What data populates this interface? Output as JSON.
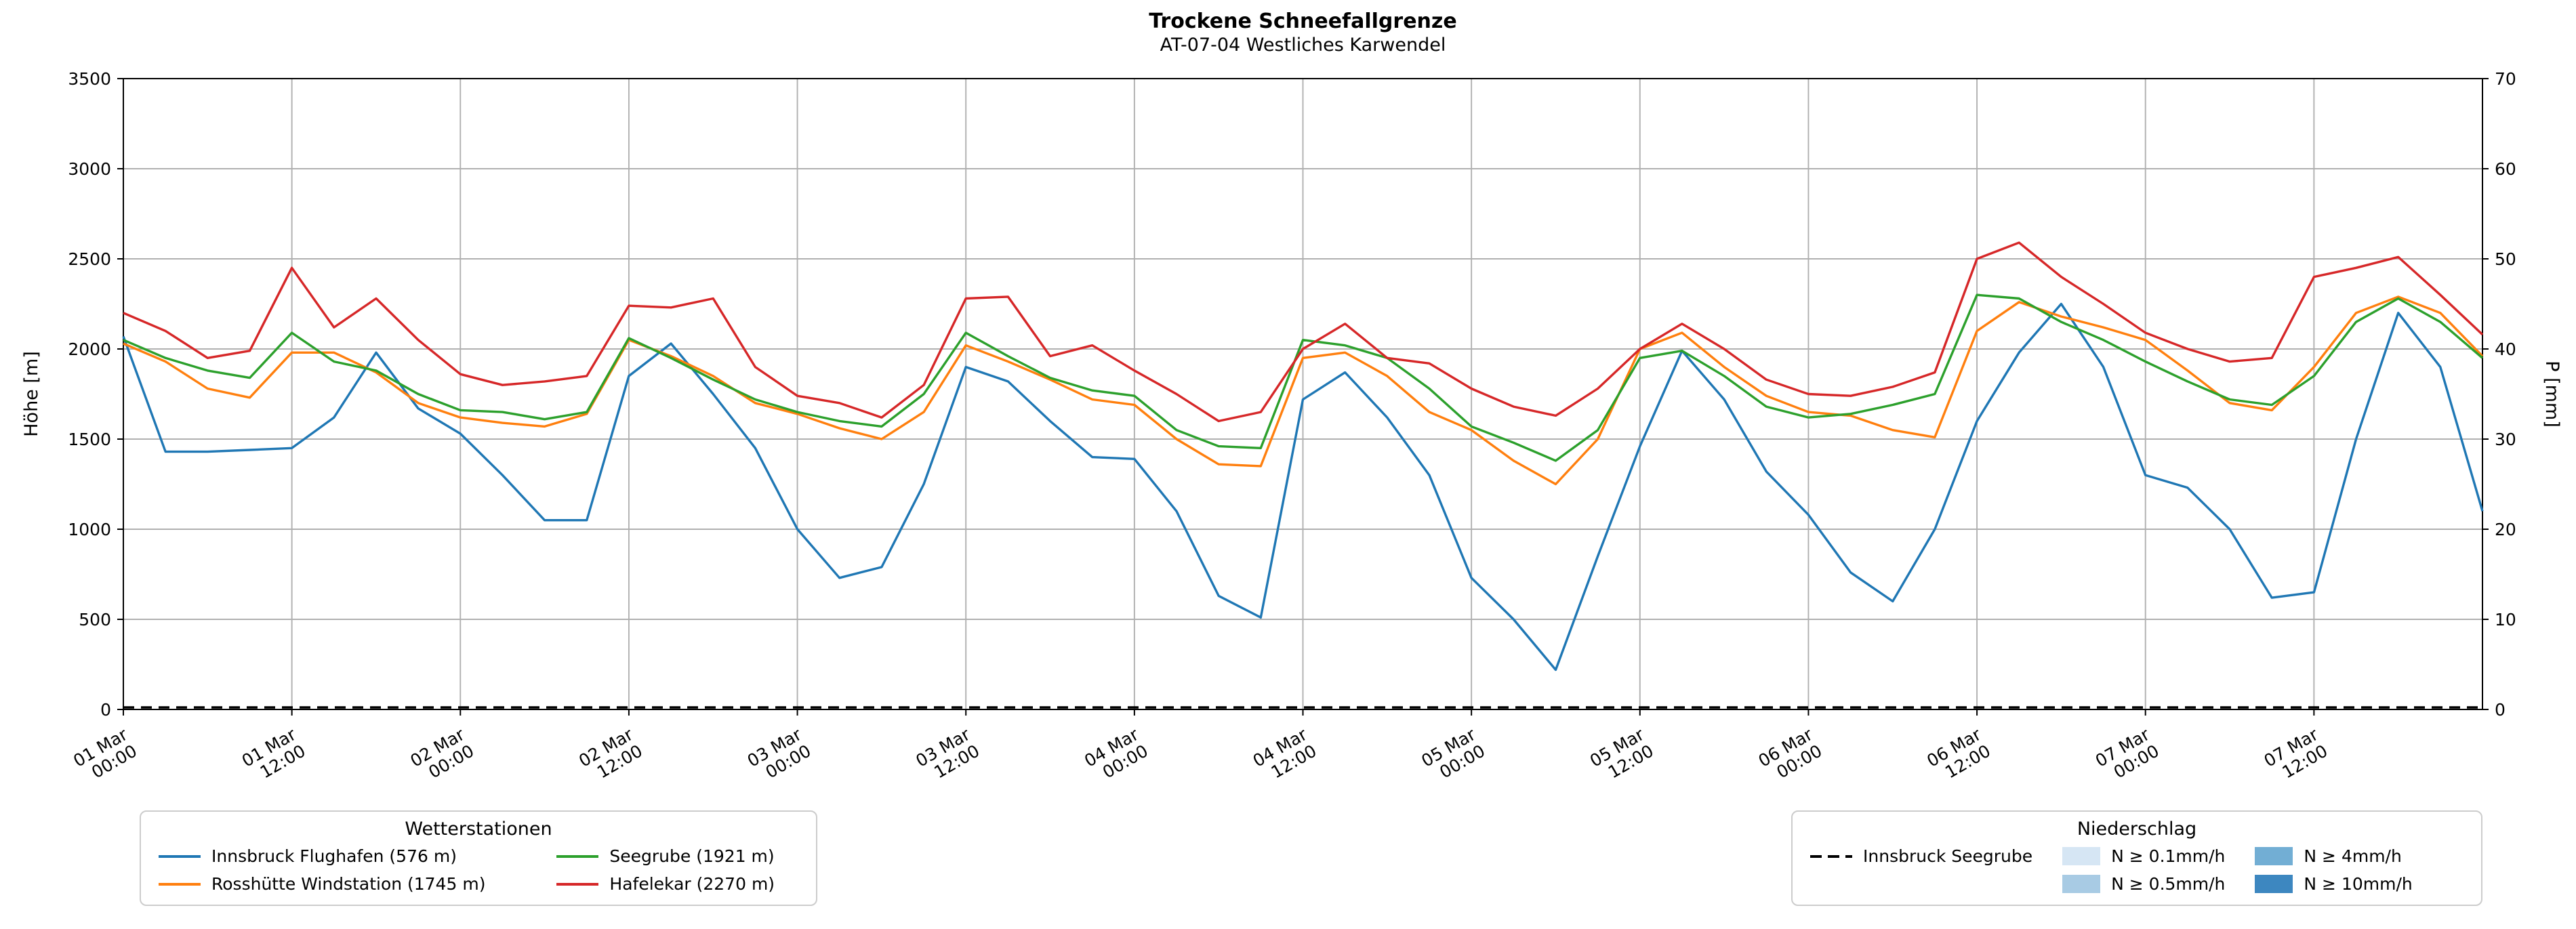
{
  "title": "Trockene Schneefallgrenze",
  "subtitle": "AT-07-04 Westliches Karwendel",
  "axes": {
    "x": {
      "start": "01 Mar 00:00",
      "range_hours": [
        0,
        168
      ],
      "tick_hours": [
        0,
        12,
        24,
        36,
        48,
        60,
        72,
        84,
        96,
        108,
        120,
        132,
        144,
        156
      ],
      "tick_labels": [
        {
          "date": "01 Mar",
          "time": "00:00"
        },
        {
          "date": "01 Mar",
          "time": "12:00"
        },
        {
          "date": "02 Mar",
          "time": "00:00"
        },
        {
          "date": "02 Mar",
          "time": "12:00"
        },
        {
          "date": "03 Mar",
          "time": "00:00"
        },
        {
          "date": "03 Mar",
          "time": "12:00"
        },
        {
          "date": "04 Mar",
          "time": "00:00"
        },
        {
          "date": "04 Mar",
          "time": "12:00"
        },
        {
          "date": "05 Mar",
          "time": "00:00"
        },
        {
          "date": "05 Mar",
          "time": "12:00"
        },
        {
          "date": "06 Mar",
          "time": "00:00"
        },
        {
          "date": "06 Mar",
          "time": "12:00"
        },
        {
          "date": "07 Mar",
          "time": "00:00"
        },
        {
          "date": "07 Mar",
          "time": "12:00"
        }
      ]
    },
    "y_left": {
      "label": "Höhe [m]",
      "min": 0,
      "max": 3500,
      "ticks": [
        0,
        500,
        1000,
        1500,
        2000,
        2500,
        3000,
        3500
      ]
    },
    "y_right": {
      "label": "P [mm]",
      "min": 0,
      "max": 70,
      "ticks": [
        0,
        10,
        20,
        30,
        40,
        50,
        60,
        70
      ]
    }
  },
  "chart_data": {
    "type": "line",
    "grid": true,
    "grid_color": "#b0b0b0",
    "legend_position": "below",
    "x_unit": "hours since 01 Mar 00:00",
    "x_hours": [
      0,
      3,
      6,
      9,
      12,
      15,
      18,
      21,
      24,
      27,
      30,
      33,
      36,
      39,
      42,
      45,
      48,
      51,
      54,
      57,
      60,
      63,
      66,
      69,
      72,
      75,
      78,
      81,
      84,
      87,
      90,
      93,
      96,
      99,
      102,
      105,
      108,
      111,
      114,
      117,
      120,
      123,
      126,
      129,
      132,
      135,
      138,
      141,
      144,
      147,
      150,
      153,
      156,
      159,
      162,
      165,
      168
    ],
    "series": [
      {
        "id": "innsbruck-flughafen",
        "name": "Innsbruck Flughafen (576 m)",
        "color": "#1f77b4",
        "axis": "left",
        "unit": "m",
        "dashed": false,
        "values": [
          2070,
          1430,
          1430,
          1440,
          1450,
          1620,
          1980,
          1670,
          1530,
          1300,
          1050,
          1050,
          1850,
          2030,
          1750,
          1450,
          1000,
          730,
          790,
          1250,
          1900,
          1820,
          1600,
          1400,
          1390,
          1100,
          630,
          510,
          1720,
          1870,
          1620,
          1300,
          730,
          500,
          220,
          850,
          1460,
          1990,
          1720,
          1320,
          1080,
          760,
          600,
          1000,
          1600,
          1980,
          2250,
          1900,
          1300,
          1230,
          1000,
          620,
          650,
          1500,
          2200,
          1900,
          1100
        ]
      },
      {
        "id": "rosshuette-windstation",
        "name": "Rosshütte Windstation (1745 m)",
        "color": "#ff7f0e",
        "axis": "left",
        "unit": "m",
        "dashed": false,
        "values": [
          2030,
          1930,
          1780,
          1730,
          1980,
          1980,
          1870,
          1700,
          1620,
          1590,
          1570,
          1640,
          2050,
          1960,
          1850,
          1700,
          1640,
          1560,
          1500,
          1650,
          2020,
          1930,
          1830,
          1720,
          1690,
          1500,
          1360,
          1350,
          1950,
          1980,
          1850,
          1650,
          1550,
          1380,
          1250,
          1500,
          2000,
          2090,
          1900,
          1740,
          1650,
          1630,
          1550,
          1510,
          2100,
          2260,
          2180,
          2120,
          2050,
          1880,
          1700,
          1660,
          1900,
          2200,
          2290,
          2200,
          1960
        ]
      },
      {
        "id": "seegrube",
        "name": "Seegrube (1921 m)",
        "color": "#2ca02c",
        "axis": "left",
        "unit": "m",
        "dashed": false,
        "values": [
          2050,
          1950,
          1880,
          1840,
          2090,
          1930,
          1880,
          1750,
          1660,
          1650,
          1610,
          1650,
          2060,
          1950,
          1830,
          1720,
          1650,
          1600,
          1570,
          1750,
          2090,
          1960,
          1840,
          1770,
          1740,
          1550,
          1460,
          1450,
          2050,
          2020,
          1950,
          1780,
          1570,
          1480,
          1380,
          1550,
          1950,
          1990,
          1850,
          1680,
          1620,
          1640,
          1690,
          1750,
          2300,
          2280,
          2150,
          2050,
          1930,
          1820,
          1720,
          1690,
          1850,
          2150,
          2280,
          2150,
          1950
        ]
      },
      {
        "id": "hafelekar",
        "name": "Hafelekar (2270 m)",
        "color": "#d62728",
        "axis": "left",
        "unit": "m",
        "dashed": false,
        "values": [
          2200,
          2100,
          1950,
          1990,
          2450,
          2120,
          2280,
          2050,
          1860,
          1800,
          1820,
          1850,
          2240,
          2230,
          2280,
          1900,
          1740,
          1700,
          1620,
          1800,
          2280,
          2290,
          1960,
          2020,
          1880,
          1750,
          1600,
          1650,
          2000,
          2140,
          1950,
          1920,
          1780,
          1680,
          1630,
          1780,
          2000,
          2140,
          2000,
          1830,
          1750,
          1740,
          1790,
          1870,
          2500,
          2590,
          2400,
          2250,
          2090,
          2000,
          1930,
          1950,
          2400,
          2450,
          2510,
          2300,
          2080
        ]
      },
      {
        "id": "innsbruck-seegrube-precip",
        "name": "Innsbruck Seegrube",
        "color": "#000000",
        "axis": "right",
        "unit": "mm",
        "dashed": true,
        "values": [
          0,
          0,
          0,
          0,
          0,
          0,
          0,
          0,
          0,
          0,
          0,
          0,
          0,
          0,
          0,
          0,
          0,
          0,
          0,
          0,
          0,
          0,
          0,
          0,
          0,
          0,
          0,
          0,
          0,
          0,
          0,
          0,
          0,
          0,
          0,
          0,
          0,
          0,
          0,
          0,
          0,
          0,
          0,
          0,
          0,
          0,
          0,
          0,
          0,
          0,
          0,
          0,
          0,
          0,
          0,
          0,
          0
        ]
      }
    ]
  },
  "legends": {
    "stations": {
      "title": "Wetterstationen",
      "items": [
        {
          "label": "Innsbruck Flughafen (576 m)",
          "color": "#1f77b4"
        },
        {
          "label": "Rosshütte Windstation (1745 m)",
          "color": "#ff7f0e"
        },
        {
          "label": "Seegrube (1921 m)",
          "color": "#2ca02c"
        },
        {
          "label": "Hafelekar (2270 m)",
          "color": "#d62728"
        }
      ]
    },
    "precip": {
      "title": "Niederschlag",
      "line_item": {
        "label": "Innsbruck Seegrube",
        "color": "#000000",
        "style": "dashed"
      },
      "bands": [
        {
          "label": "N ≥ 0.1mm/h",
          "color": "#d6e6f4"
        },
        {
          "label": "N ≥ 0.5mm/h",
          "color": "#a8cbe4"
        },
        {
          "label": "N ≥ 4mm/h",
          "color": "#72aed4"
        },
        {
          "label": "N ≥ 10mm/h",
          "color": "#3d87c0"
        }
      ]
    }
  }
}
